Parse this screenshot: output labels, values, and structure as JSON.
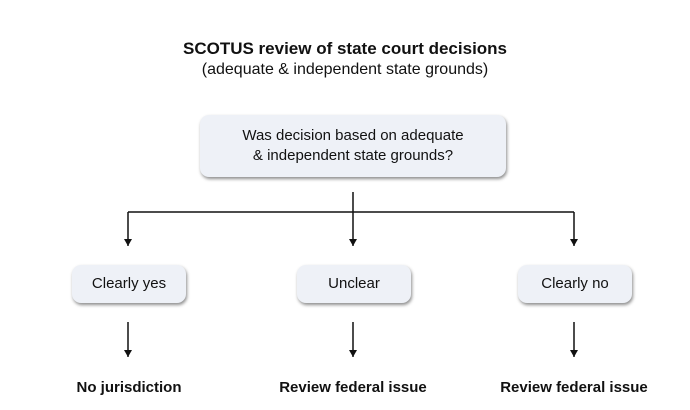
{
  "title": "SCOTUS review of state court decisions",
  "subtitle": "(adequate & independent state grounds)",
  "question": {
    "line1": "Was decision based on adequate",
    "line2": "& independent state grounds?"
  },
  "branches": [
    {
      "label": "Clearly yes",
      "outcome": "No jurisdiction"
    },
    {
      "label": "Unclear",
      "outcome": "Review federal issue"
    },
    {
      "label": "Clearly no",
      "outcome": "Review federal issue"
    }
  ],
  "colors": {
    "box_fill": "#eef1f7",
    "line": "#111111"
  }
}
